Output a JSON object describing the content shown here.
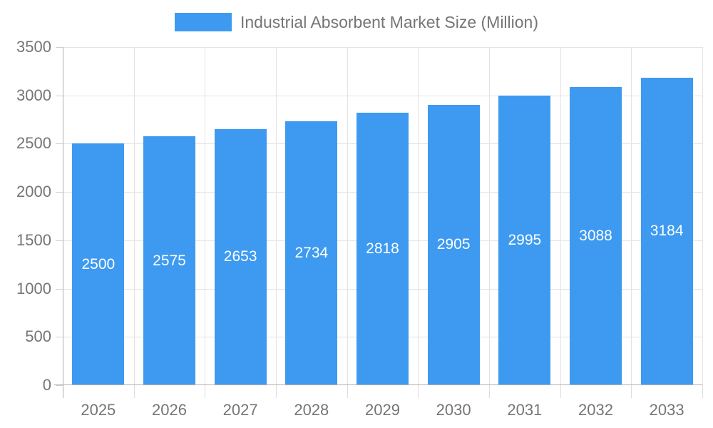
{
  "legend": {
    "label": "Industrial Absorbent Market Size (Million)"
  },
  "colors": {
    "bar": "#3d9af0",
    "bar_label": "#ffffff",
    "axis_text": "#757575",
    "grid": "#e3e3e3",
    "axis_line": "#b0b0b0"
  },
  "chart_data": {
    "type": "bar",
    "title": "Industrial Absorbent Market Size (Million)",
    "categories": [
      "2025",
      "2026",
      "2027",
      "2028",
      "2029",
      "2030",
      "2031",
      "2032",
      "2033"
    ],
    "values": [
      2500,
      2575,
      2653,
      2734,
      2818,
      2905,
      2995,
      3088,
      3184
    ],
    "xlabel": "",
    "ylabel": "",
    "ylim": [
      0,
      3500
    ],
    "yticks": [
      0,
      500,
      1000,
      1500,
      2000,
      2500,
      3000,
      3500
    ],
    "grid": true,
    "legend_position": "top",
    "data_labels": "inside-center",
    "series": [
      {
        "name": "Industrial Absorbent Market Size (Million)",
        "values": [
          2500,
          2575,
          2653,
          2734,
          2818,
          2905,
          2995,
          3088,
          3184
        ]
      }
    ]
  }
}
